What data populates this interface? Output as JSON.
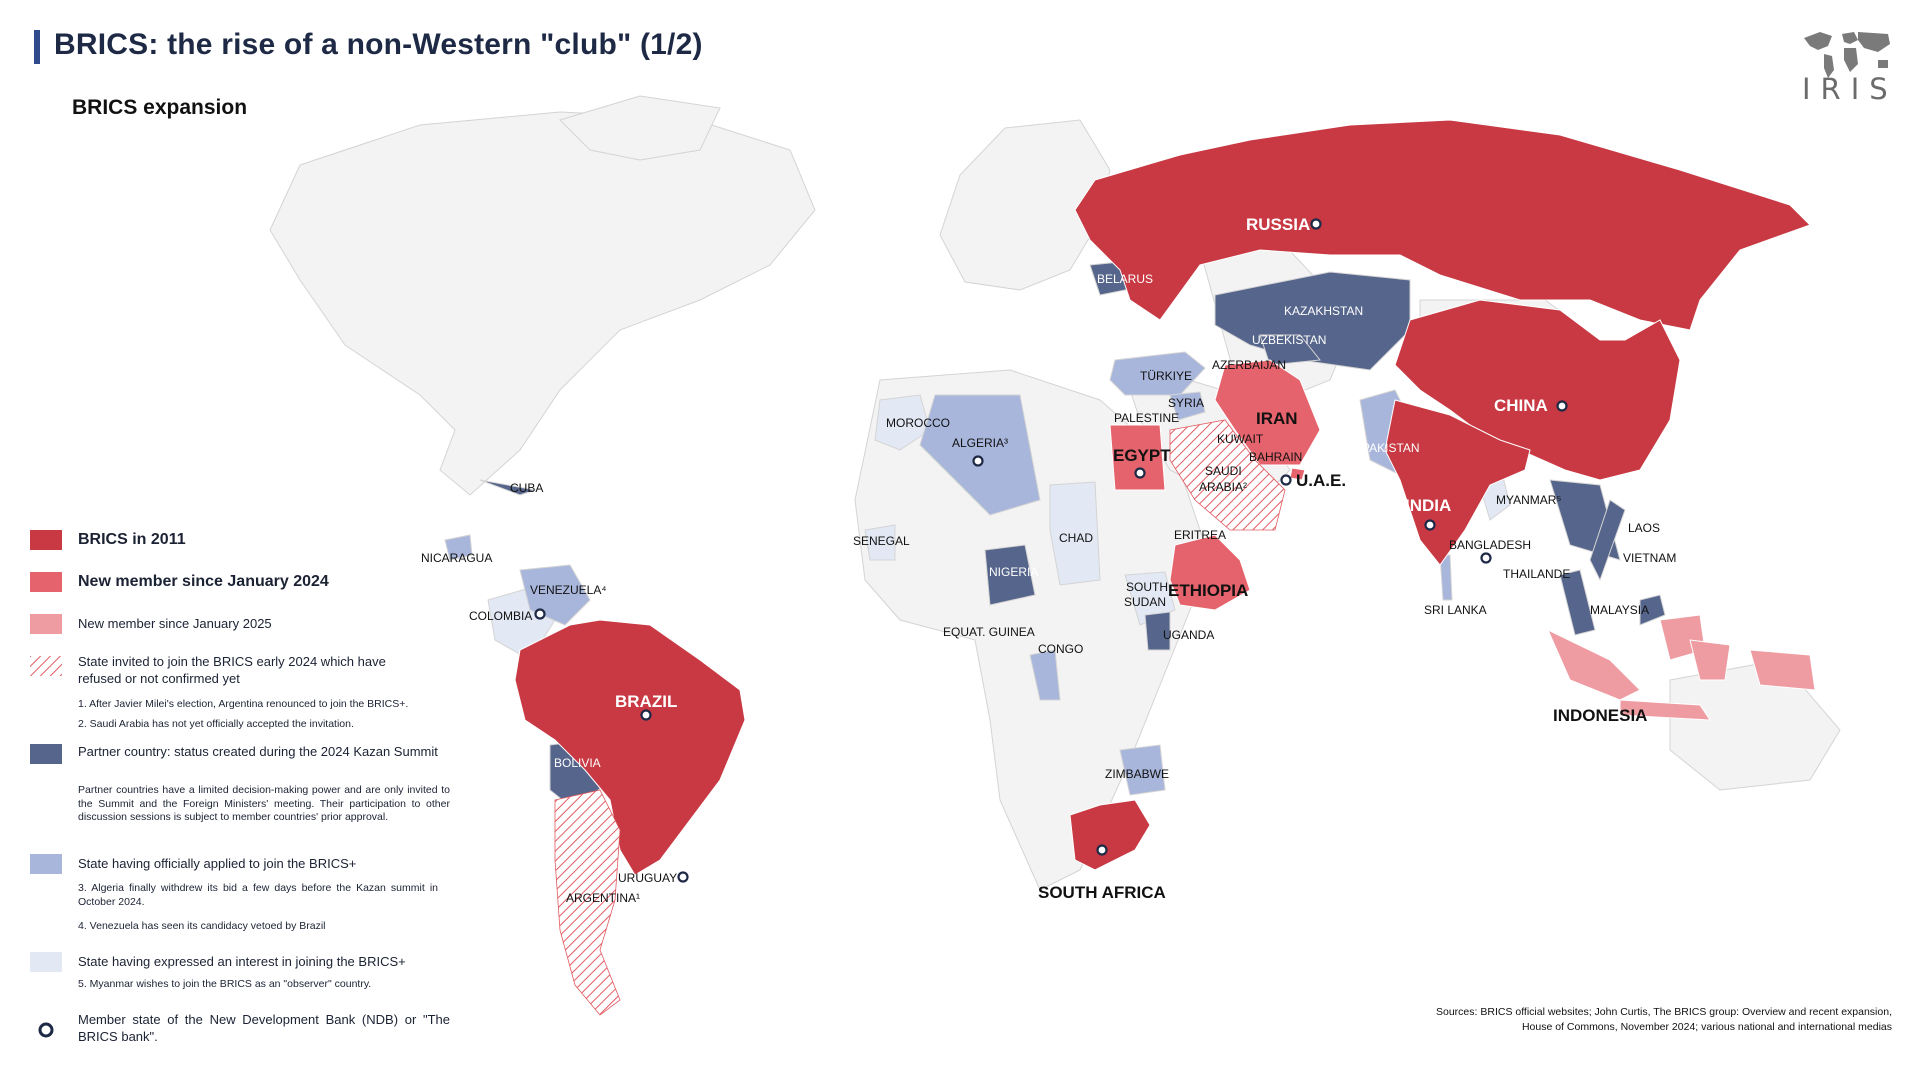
{
  "header": {
    "title": "BRICS: the rise of a non-Western \"club\" (1/2)",
    "subtitle": "BRICS expansion",
    "logo_text": "IRIS",
    "logo_icon": "world-map-icon"
  },
  "colors": {
    "brics_2011": "#c83943",
    "member_2024": "#e5636c",
    "member_2025": "#ef9ba2",
    "invited_refused": "#e25b62",
    "partner": "#56658b",
    "applied": "#a9b6dc",
    "interest": "#e2e8f4",
    "other": "#f3f3f3",
    "ndb_marker": "#1e2a45"
  },
  "map_labels": {
    "russia": "RUSSIA",
    "china": "CHINA",
    "india": "INDIA",
    "brazil": "BRAZIL",
    "south_africa": "SOUTH AFRICA",
    "iran": "IRAN",
    "egypt": "EGYPT",
    "ethiopia": "ETHIOPIA",
    "uae": "U.A.E.",
    "indonesia": "INDONESIA",
    "saudi_1": "SAUDI",
    "saudi_2": "ARABIA²",
    "argentina": "ARGENTINA¹",
    "belarus": "BELARUS",
    "kazakhstan": "KAZAKHSTAN",
    "uzbekistan": "UZBEKISTAN",
    "azerbaijan": "AZERBAIJAN",
    "turkiye": "TÜRKIYE",
    "syria": "SYRIA",
    "palestine": "PALESTINE",
    "kuwait": "KUWAIT",
    "bahrain": "BAHRAIN",
    "pakistan": "PAKISTAN",
    "morocco": "MOROCCO",
    "algeria": "ALGERIA³",
    "senegal": "SENEGAL",
    "chad": "CHAD",
    "nigeria": "NIGERIA",
    "eritrea": "ERITREA",
    "south_sudan_1": "SOUTH",
    "south_sudan_2": "SUDAN",
    "equat_guinea": "EQUAT. GUINEA",
    "congo": "CONGO",
    "uganda": "UGANDA",
    "zimbabwe": "ZIMBABWE",
    "myanmar": "MYANMAR⁵",
    "laos": "LAOS",
    "vietnam": "VIETNAM",
    "bangladesh": "BANGLADESH",
    "thailande": "THAILANDE",
    "sri_lanka": "SRI LANKA",
    "malaysia": "MALAYSIA",
    "cuba": "CUBA",
    "nicaragua": "NICARAGUA",
    "venezuela": "VENEZUELA⁴",
    "colombia": "COLOMBIA",
    "bolivia": "BOLIVIA",
    "uruguay": "URUGUAY"
  },
  "legend": {
    "brics_2011": "BRICS in 2011",
    "member_2024": "New member since January 2024",
    "member_2025": "New member since January 2025",
    "invited": "State invited to join the BRICS early 2024 which have refused or not confirmed yet",
    "note1": "1. After Javier Milei's election, Argentina renounced to join the BRICS+.",
    "note2": "2. Saudi Arabia has not yet officially accepted the invitation.",
    "partner": "Partner country: status created during the 2024 Kazan Summit",
    "partner_note": "Partner countries have a limited decision-making power and are only invited to the Summit and the Foreign Ministers' meeting. Their participation to other discussion sessions is subject to member countries' prior approval.",
    "applied": "State having officially applied to join the BRICS+",
    "note3": "3. Algeria finally withdrew its bid a few days before the Kazan summit in October 2024.",
    "note4": "4. Venezuela has seen its candidacy vetoed by Brazil",
    "interest": "State having expressed an interest in joining the BRICS+",
    "note5": "5. Myanmar wishes to join the BRICS as an \"observer\" country.",
    "ndb": "Member state of the New Development Bank (NDB) or \"The BRICS bank\"."
  },
  "sources": {
    "line1": "Sources: BRICS official websites; John Curtis, The BRICS group: Overview and recent expansion,",
    "line2": "House of Commons, November 2024; various national and international medias"
  }
}
